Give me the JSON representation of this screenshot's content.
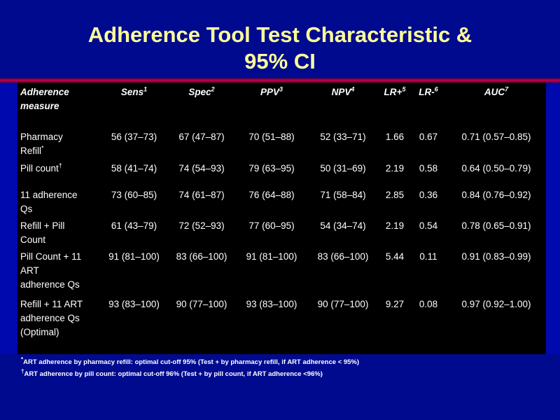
{
  "title": {
    "line1": "Adherence Tool Test Characteristic &",
    "line2": "95% CI"
  },
  "table": {
    "columns": [
      {
        "label": "Adherence\nmeasure",
        "sup": ""
      },
      {
        "label": "Sens",
        "sup": "1"
      },
      {
        "label": "Spec",
        "sup": "2"
      },
      {
        "label": "PPV",
        "sup": "3"
      },
      {
        "label": "NPV",
        "sup": "4"
      },
      {
        "label": "LR+",
        "sup": "5"
      },
      {
        "label": "LR-",
        "sup": "6"
      },
      {
        "label": "AUC",
        "sup": "7"
      }
    ],
    "rows": [
      {
        "label": "Pharmacy\nRefill",
        "label_sup": "*",
        "values": [
          "56 (37–73)",
          "67 (47–87)",
          "70 (51–88)",
          "52 (33–71)",
          "1.66",
          "0.67",
          "0.71 (0.57–0.85)"
        ]
      },
      {
        "label": "Pill count",
        "label_sup": "†",
        "values": [
          "58 (41–74)",
          "74 (54–93)",
          "79 (63–95)",
          "50 (31–69)",
          "2.19",
          "0.58",
          "0.64 (0.50–0.79)"
        ]
      },
      {
        "label": "11 adherence\nQs",
        "label_sup": "",
        "values": [
          "73 (60–85)",
          "74 (61–87)",
          "76 (64–88)",
          "71 (58–84)",
          "2.85",
          "0.36",
          "0.84 (0.76–0.92)"
        ]
      },
      {
        "label": "Refill + Pill\nCount",
        "label_sup": "",
        "values": [
          "61 (43–79)",
          "72 (52–93)",
          "77 (60–95)",
          "54 (34–74)",
          "2.19",
          "0.54",
          "0.78 (0.65–0.91)"
        ]
      },
      {
        "label": "Pill Count + 11\nART\nadherence Qs",
        "label_sup": "",
        "values": [
          "91 (81–100)",
          "83 (66–100)",
          "91 (81–100)",
          "83 (66–100)",
          "5.44",
          "0.11",
          "0.91 (0.83–0.99)"
        ]
      },
      {
        "label": "Refill + 11 ART\nadherence Qs\n(Optimal)",
        "label_sup": "",
        "values": [
          "93 (83–100)",
          "90 (77–100)",
          "93 (83–100)",
          "90 (77–100)",
          "9.27",
          "0.08",
          "0.97 (0.92–1.00)"
        ]
      }
    ]
  },
  "footnotes": [
    {
      "marker": "*",
      "text": "ART adherence by pharmacy refill: optimal cut-off 95% (Test + by pharmacy refill, if ART adherence < 95%)"
    },
    {
      "marker": "†",
      "text": "ART adherence by pill count: optimal cut-off 96% (Test + by pill count, if ART adherence <96%)"
    }
  ],
  "colors": {
    "background": "#000a8f",
    "table_band": "#0009ad",
    "table_bg": "#000000",
    "title_text": "#ffff99",
    "rule": "#c4004e",
    "body_text": "#ffffff"
  }
}
